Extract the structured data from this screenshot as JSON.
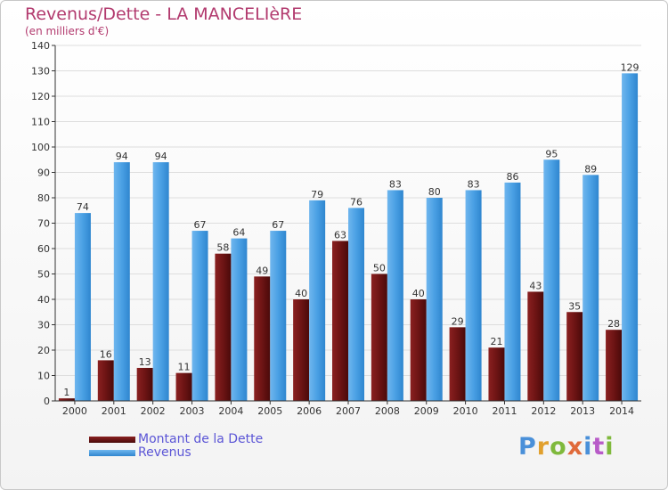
{
  "title": "Revenus/Dette - LA MANCELIèRE",
  "subtitle": "(en milliers d'€)",
  "logo_text": "Proxiti",
  "colors": {
    "debt_bar": "#6d1414",
    "revenue_bar": "#4aa0e4",
    "axis": "#333333",
    "grid": "#dddddd",
    "title": "#b23a6e",
    "legend_text": "#5b55d6"
  },
  "chart_data": {
    "type": "bar",
    "title": "Revenus/Dette - LA MANCELIèRE",
    "subtitle": "(en milliers d'€)",
    "xlabel": "",
    "ylabel": "",
    "ylim": [
      0,
      140
    ],
    "yticks": [
      0,
      10,
      20,
      30,
      40,
      50,
      60,
      70,
      80,
      90,
      100,
      110,
      120,
      130,
      140
    ],
    "grid": true,
    "legend_position": "bottom-left",
    "categories": [
      "2000",
      "2001",
      "2002",
      "2003",
      "2004",
      "2005",
      "2006",
      "2007",
      "2008",
      "2009",
      "2010",
      "2011",
      "2012",
      "2013",
      "2014"
    ],
    "series": [
      {
        "name": "Montant de la Dette",
        "values": [
          1,
          16,
          13,
          11,
          58,
          49,
          40,
          63,
          50,
          40,
          29,
          21,
          43,
          35,
          28
        ]
      },
      {
        "name": "Revenus",
        "values": [
          74,
          94,
          94,
          67,
          64,
          67,
          79,
          76,
          83,
          80,
          83,
          86,
          95,
          89,
          129
        ]
      }
    ]
  }
}
